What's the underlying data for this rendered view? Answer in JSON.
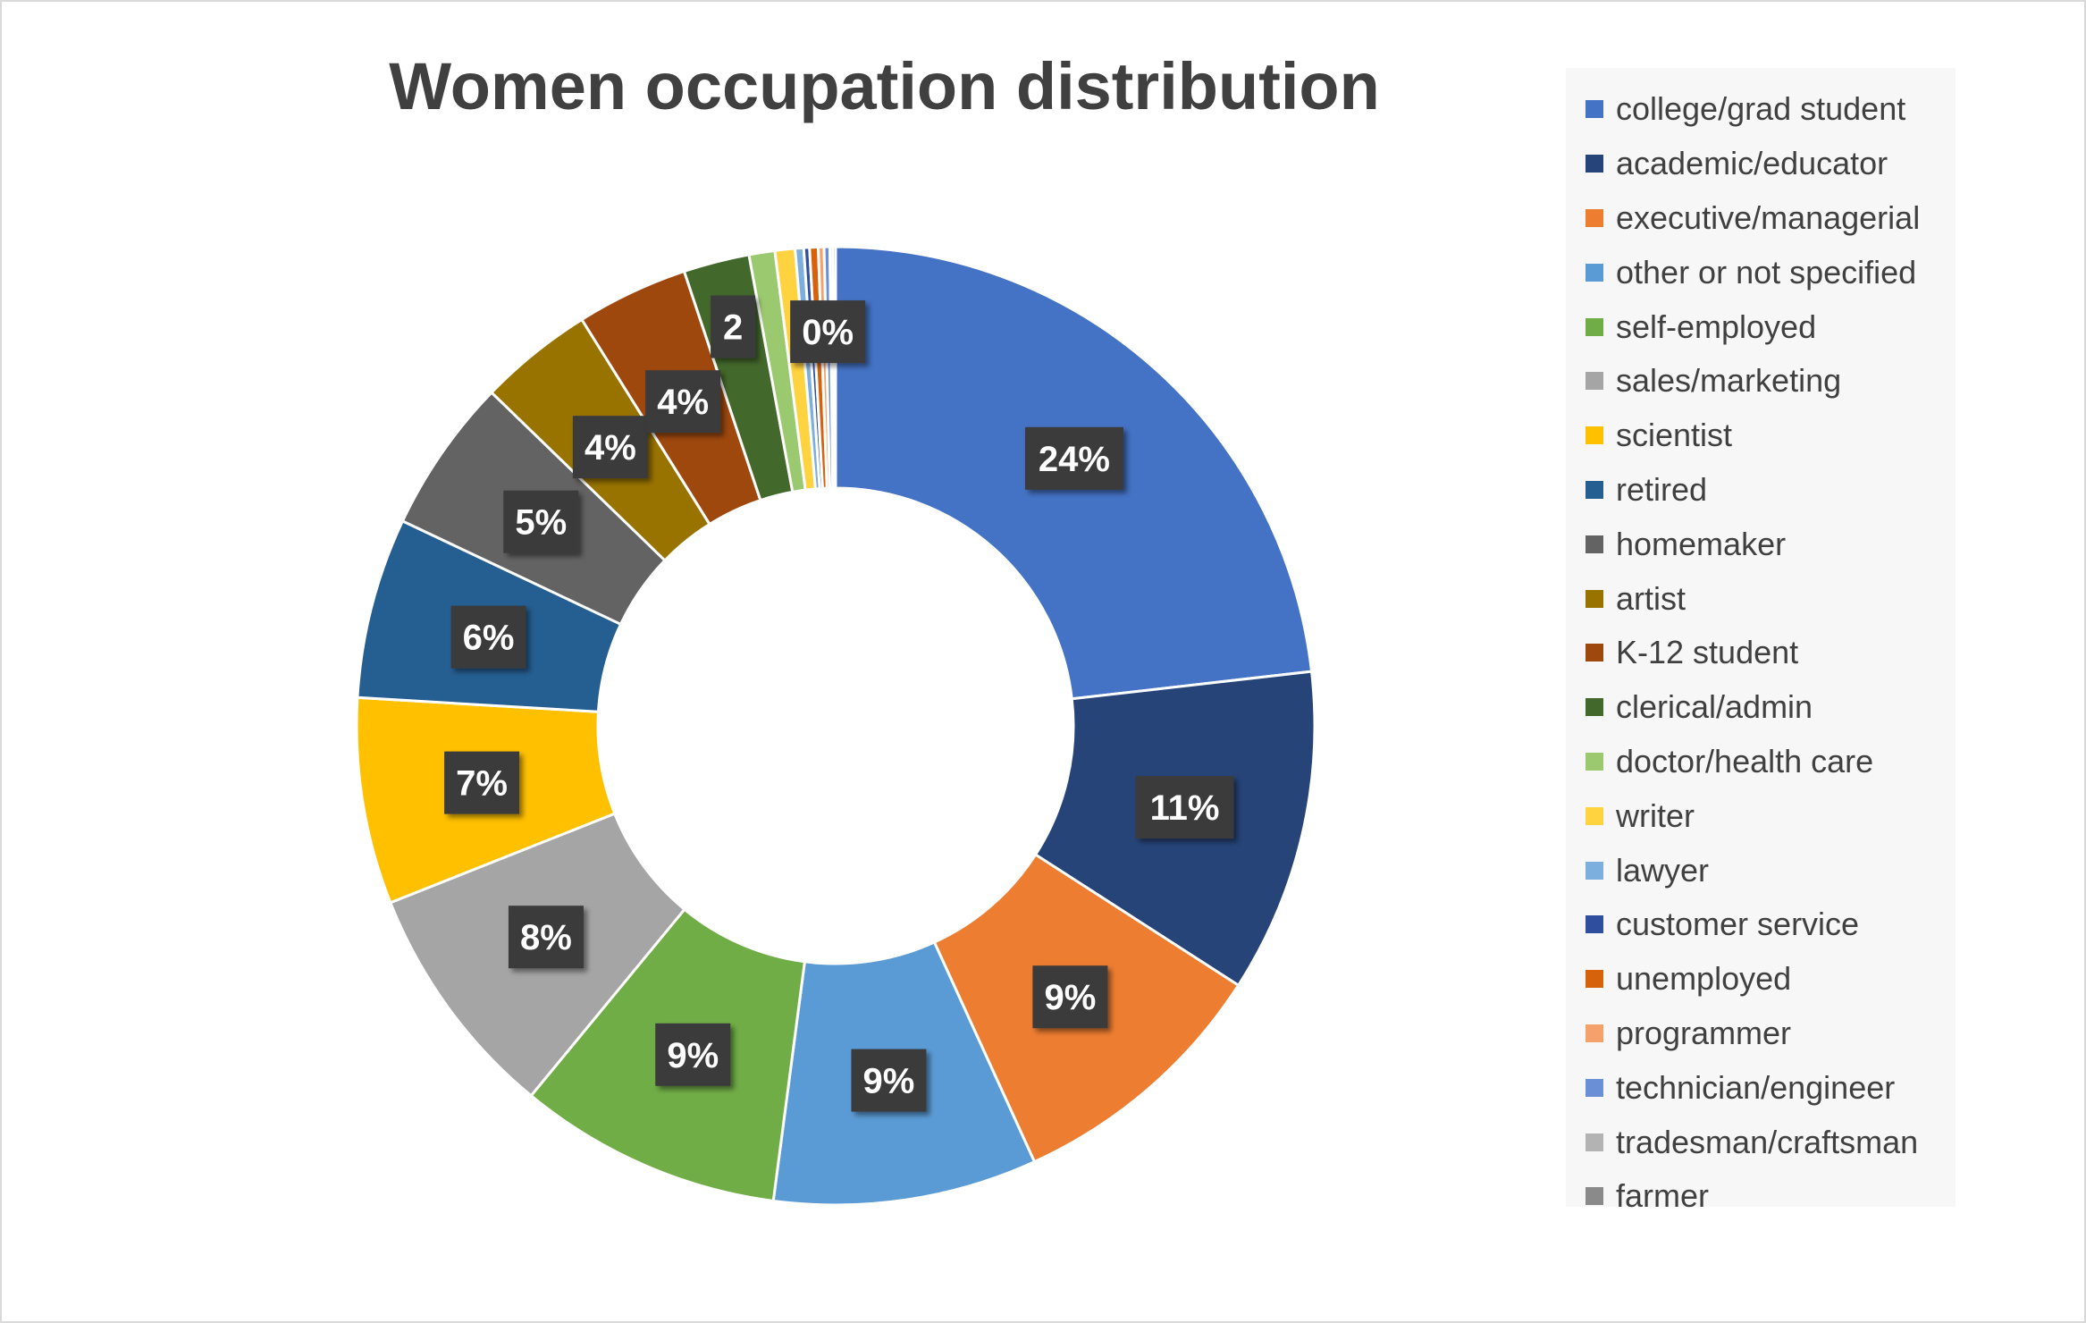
{
  "chart_data": {
    "type": "pie",
    "donut": true,
    "title": "Women occupation distribution",
    "legend_position": "right",
    "slices": [
      {
        "label": "college/grad student",
        "value": 24,
        "display": "24%",
        "color": "#4472C4"
      },
      {
        "label": "academic/educator",
        "value": 11.3,
        "display": "11%",
        "color": "#264478"
      },
      {
        "label": "executive/managerial",
        "value": 9.4,
        "display": "9%",
        "color": "#ED7D31"
      },
      {
        "label": "other or not specified",
        "value": 9.2,
        "display": "9%",
        "color": "#5B9BD5"
      },
      {
        "label": "self-employed",
        "value": 9.2,
        "display": "9%",
        "color": "#70AD47"
      },
      {
        "label": "sales/marketing",
        "value": 8.3,
        "display": "8%",
        "color": "#A5A5A5"
      },
      {
        "label": "scientist",
        "value": 7.2,
        "display": "7%",
        "color": "#FFC000"
      },
      {
        "label": "retired",
        "value": 6.3,
        "display": "6%",
        "color": "#255E91"
      },
      {
        "label": "homemaker",
        "value": 5.4,
        "display": "5%",
        "color": "#636363"
      },
      {
        "label": "artist",
        "value": 4.0,
        "display": "4%",
        "color": "#997300"
      },
      {
        "label": "K-12 student",
        "value": 3.9,
        "display": "4%",
        "color": "#9E480E"
      },
      {
        "label": "clerical/admin",
        "value": 2.3,
        "display": "2",
        "color": "#43682B"
      },
      {
        "label": "doctor/health care",
        "value": 0.9,
        "display": "",
        "color": "#9BC96F"
      },
      {
        "label": "writer",
        "value": 0.7,
        "display": "",
        "color": "#FFD23F"
      },
      {
        "label": "lawyer",
        "value": 0.3,
        "display": "",
        "color": "#7CAFDD"
      },
      {
        "label": "customer service",
        "value": 0.2,
        "display": "",
        "color": "#2F4F9E"
      },
      {
        "label": "unemployed",
        "value": 0.3,
        "display": "",
        "color": "#D6620C"
      },
      {
        "label": "programmer",
        "value": 0.2,
        "display": "",
        "color": "#F4A16B"
      },
      {
        "label": "technician/engineer",
        "value": 0.2,
        "display": "0%",
        "color": "#6A8FD6"
      },
      {
        "label": "tradesman/craftsman",
        "value": 0.1,
        "display": "",
        "color": "#B3B3B3"
      },
      {
        "label": "farmer",
        "value": 0.1,
        "display": "",
        "color": "#8A8A8A"
      }
    ]
  }
}
